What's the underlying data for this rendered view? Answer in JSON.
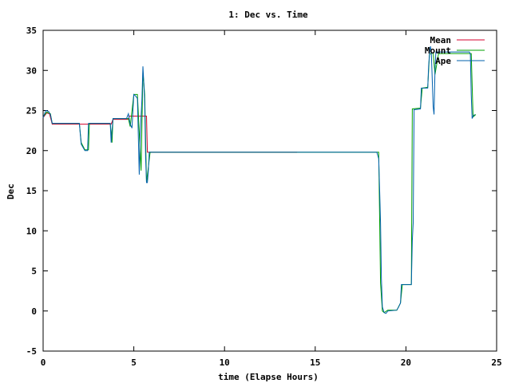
{
  "chart_data": {
    "type": "line",
    "title": "1: Dec vs. Time",
    "xlabel": "time (Elapse Hours)",
    "ylabel": "Dec",
    "xlim": [
      0,
      25
    ],
    "ylim": [
      -5,
      35
    ],
    "x_ticks": [
      "0",
      "5",
      "10",
      "15",
      "20",
      "25"
    ],
    "y_ticks": [
      "-5",
      "0",
      "5",
      "10",
      "15",
      "20",
      "25",
      "30",
      "35"
    ],
    "legend_position": "top-right",
    "grid": false,
    "series": [
      {
        "name": "Mean",
        "color": "#d4002c",
        "points": [
          [
            0,
            24.1
          ],
          [
            0.2,
            24.7
          ],
          [
            0.35,
            24.6
          ],
          [
            0.5,
            23.3
          ],
          [
            2.05,
            23.3
          ],
          [
            2.05,
            23.3
          ],
          [
            2.5,
            23.3
          ],
          [
            3.7,
            23.3
          ],
          [
            3.75,
            23.3
          ],
          [
            3.85,
            23.9
          ],
          [
            4.7,
            23.9
          ],
          [
            4.75,
            24.3
          ],
          [
            5.7,
            24.3
          ],
          [
            5.75,
            19.8
          ],
          [
            6.0,
            19.8
          ],
          [
            14.0,
            19.8
          ]
        ]
      },
      {
        "name": "Mount",
        "color": "#00a000",
        "points": [
          [
            0,
            24.2
          ],
          [
            0.2,
            24.8
          ],
          [
            0.4,
            24.6
          ],
          [
            0.5,
            23.4
          ],
          [
            2.0,
            23.4
          ],
          [
            2.1,
            21.0
          ],
          [
            2.3,
            20.1
          ],
          [
            2.5,
            20.1
          ],
          [
            2.55,
            23.4
          ],
          [
            3.7,
            23.4
          ],
          [
            3.8,
            21.0
          ],
          [
            3.85,
            24.0
          ],
          [
            4.7,
            24.0
          ],
          [
            4.8,
            23.0
          ],
          [
            5.0,
            27.0
          ],
          [
            5.2,
            27.0
          ],
          [
            5.4,
            17.5
          ],
          [
            5.5,
            29.8
          ],
          [
            5.6,
            27.0
          ],
          [
            5.7,
            16.0
          ],
          [
            5.9,
            19.8
          ],
          [
            18.5,
            19.8
          ],
          [
            18.6,
            3.5
          ],
          [
            18.7,
            0.0
          ],
          [
            18.8,
            -0.2
          ],
          [
            19.0,
            0.1
          ],
          [
            19.5,
            0.1
          ],
          [
            19.7,
            1.0
          ],
          [
            19.8,
            3.3
          ],
          [
            20.3,
            3.3
          ],
          [
            20.35,
            25.2
          ],
          [
            20.8,
            25.3
          ],
          [
            20.9,
            27.8
          ],
          [
            21.2,
            27.9
          ],
          [
            21.3,
            32.0
          ],
          [
            21.5,
            32.2
          ],
          [
            21.6,
            29.5
          ],
          [
            21.8,
            32.1
          ],
          [
            23.6,
            32.1
          ],
          [
            23.7,
            24.2
          ],
          [
            23.85,
            24.5
          ]
        ]
      },
      {
        "name": "Ape",
        "color": "#0060ad",
        "points": [
          [
            0,
            24.1
          ],
          [
            0.15,
            25.0
          ],
          [
            0.3,
            24.9
          ],
          [
            0.4,
            24.5
          ],
          [
            0.5,
            23.4
          ],
          [
            2.0,
            23.4
          ],
          [
            2.05,
            22.0
          ],
          [
            2.1,
            20.8
          ],
          [
            2.2,
            20.4
          ],
          [
            2.3,
            20.0
          ],
          [
            2.45,
            20.0
          ],
          [
            2.5,
            23.4
          ],
          [
            3.7,
            23.4
          ],
          [
            3.75,
            21.0
          ],
          [
            3.8,
            22.5
          ],
          [
            3.85,
            24.0
          ],
          [
            4.6,
            24.0
          ],
          [
            4.7,
            24.6
          ],
          [
            4.8,
            23.3
          ],
          [
            4.9,
            22.8
          ],
          [
            5.0,
            27.0
          ],
          [
            5.1,
            26.8
          ],
          [
            5.2,
            26.5
          ],
          [
            5.3,
            17.0
          ],
          [
            5.35,
            22.0
          ],
          [
            5.45,
            26.5
          ],
          [
            5.5,
            30.5
          ],
          [
            5.55,
            28.5
          ],
          [
            5.6,
            26.0
          ],
          [
            5.65,
            19.0
          ],
          [
            5.7,
            16.0
          ],
          [
            5.75,
            16.0
          ],
          [
            5.8,
            17.5
          ],
          [
            5.85,
            19.8
          ],
          [
            18.4,
            19.8
          ],
          [
            18.5,
            19.0
          ],
          [
            18.55,
            15.0
          ],
          [
            18.6,
            11.0
          ],
          [
            18.65,
            4.0
          ],
          [
            18.7,
            0.5
          ],
          [
            18.8,
            -0.2
          ],
          [
            18.9,
            -0.3
          ],
          [
            19.0,
            0.0
          ],
          [
            19.5,
            0.1
          ],
          [
            19.6,
            0.5
          ],
          [
            19.7,
            1.0
          ],
          [
            19.75,
            3.3
          ],
          [
            20.3,
            3.3
          ],
          [
            20.35,
            8.8
          ],
          [
            20.4,
            11.0
          ],
          [
            20.45,
            25.1
          ],
          [
            20.8,
            25.2
          ],
          [
            20.85,
            27.8
          ],
          [
            21.2,
            27.8
          ],
          [
            21.25,
            30.5
          ],
          [
            21.3,
            32.0
          ],
          [
            21.35,
            33.0
          ],
          [
            21.4,
            32.3
          ],
          [
            21.5,
            25.5
          ],
          [
            21.55,
            24.5
          ],
          [
            21.6,
            30.0
          ],
          [
            21.65,
            32.3
          ],
          [
            23.5,
            32.3
          ],
          [
            23.55,
            32.0
          ],
          [
            23.6,
            27.0
          ],
          [
            23.65,
            24.0
          ],
          [
            23.7,
            24.3
          ],
          [
            23.8,
            24.5
          ]
        ]
      }
    ]
  }
}
